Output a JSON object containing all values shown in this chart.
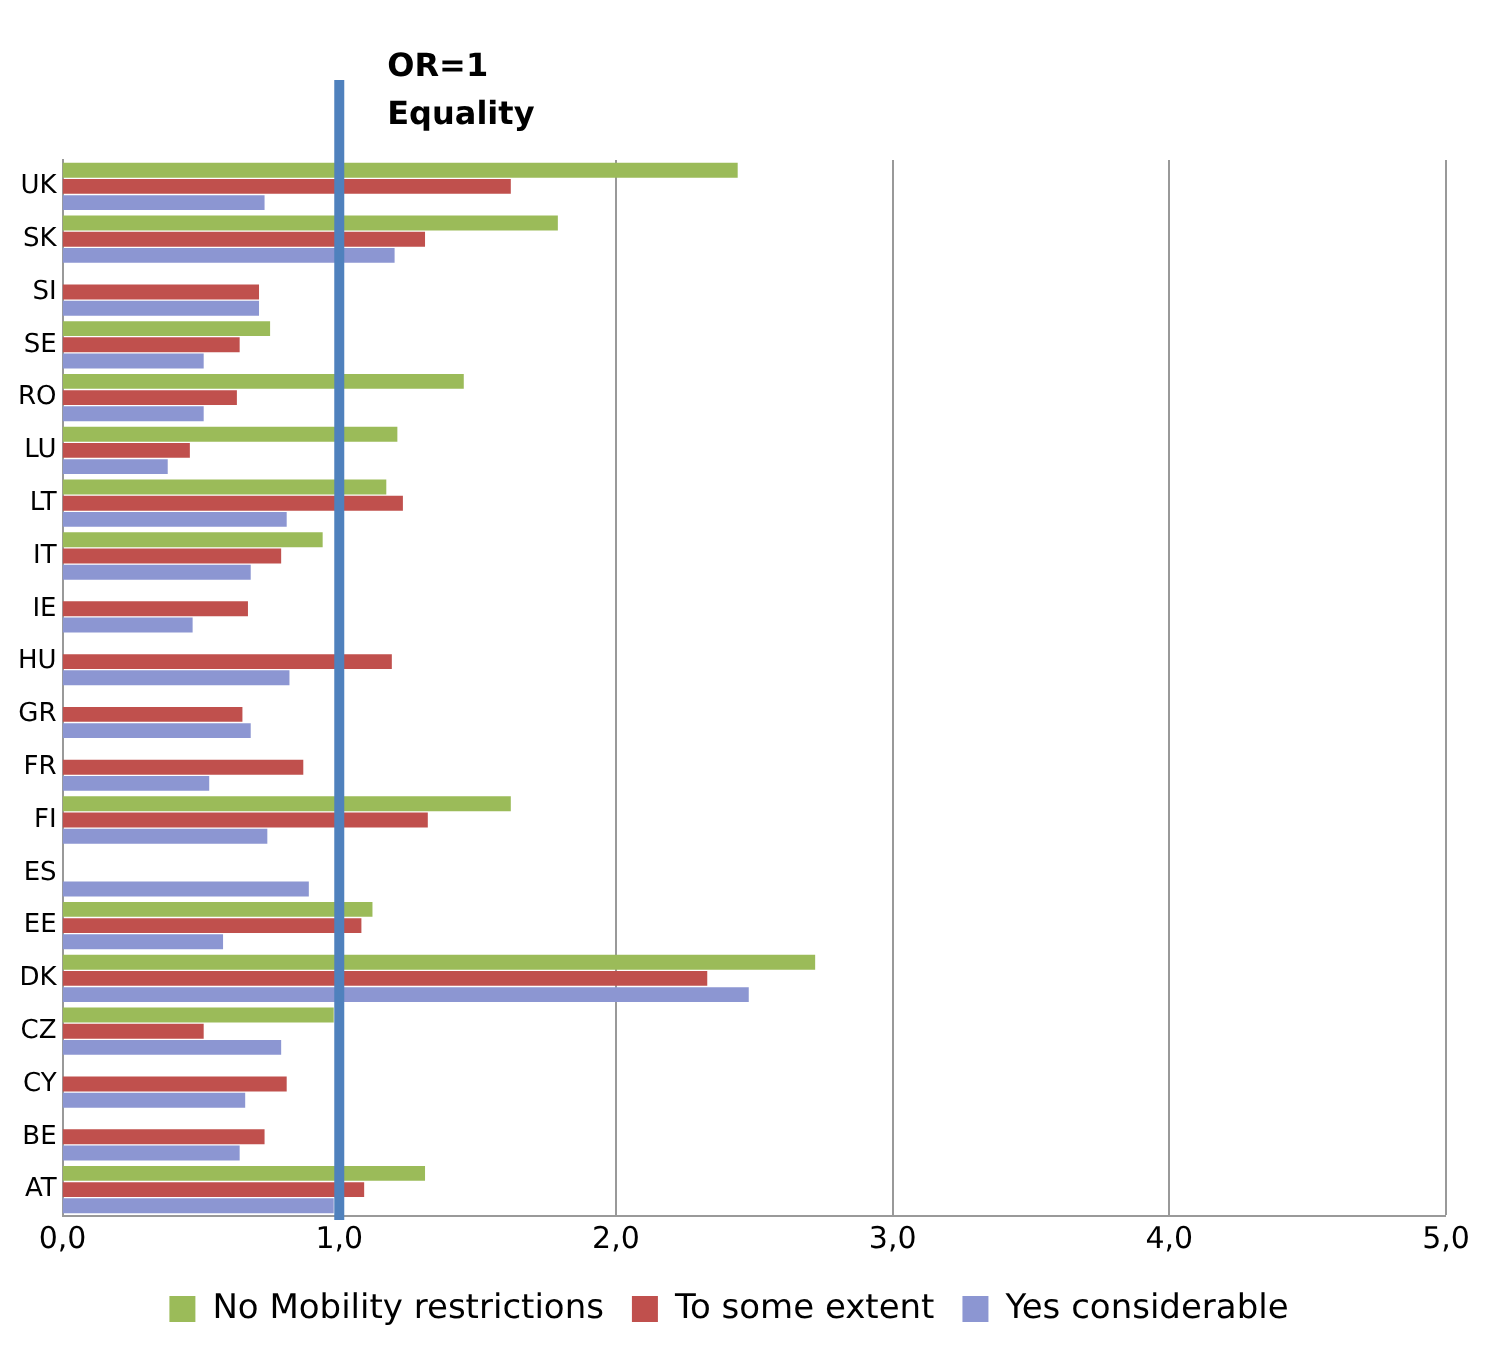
{
  "chart_data": {
    "type": "bar",
    "orientation": "horizontal",
    "categories": [
      "UK",
      "SK",
      "SI",
      "SE",
      "RO",
      "LU",
      "LT",
      "IT",
      "IE",
      "HU",
      "GR",
      "FR",
      "FI",
      "ES",
      "EE",
      "DK",
      "CZ",
      "CY",
      "BE",
      "AT"
    ],
    "series": [
      {
        "name": "No Mobility restrictions",
        "color": "#9bbb59",
        "values": [
          2.44,
          1.79,
          null,
          0.75,
          1.45,
          1.21,
          1.17,
          0.94,
          null,
          null,
          null,
          null,
          1.62,
          null,
          1.12,
          2.72,
          0.98,
          null,
          null,
          1.31
        ]
      },
      {
        "name": "To some extent",
        "color": "#c0504d",
        "values": [
          1.62,
          1.31,
          0.71,
          0.64,
          0.63,
          0.46,
          1.23,
          0.79,
          0.67,
          1.19,
          0.65,
          0.87,
          1.32,
          null,
          1.08,
          2.33,
          0.51,
          0.81,
          0.73,
          1.09
        ]
      },
      {
        "name": "Yes considerable",
        "color": "#8c96d2",
        "values": [
          0.73,
          1.2,
          0.71,
          0.51,
          0.51,
          0.38,
          0.81,
          0.68,
          0.47,
          0.82,
          0.68,
          0.53,
          0.74,
          0.89,
          0.58,
          2.48,
          0.79,
          0.66,
          0.64,
          0.98
        ]
      }
    ],
    "xlim": [
      0,
      5
    ],
    "xticks": [
      {
        "value": 0,
        "label": "0,0"
      },
      {
        "value": 1,
        "label": "1,0"
      },
      {
        "value": 2,
        "label": "2,0"
      },
      {
        "value": 3,
        "label": "3,0"
      },
      {
        "value": 4,
        "label": "4,0"
      },
      {
        "value": 5,
        "label": "5,0"
      }
    ],
    "grid": "x",
    "legend": "bottom",
    "ref_lines": [
      {
        "axis": "x",
        "value": 1,
        "label": "OR=1\nEquality",
        "color": "#4f81bd"
      }
    ]
  }
}
